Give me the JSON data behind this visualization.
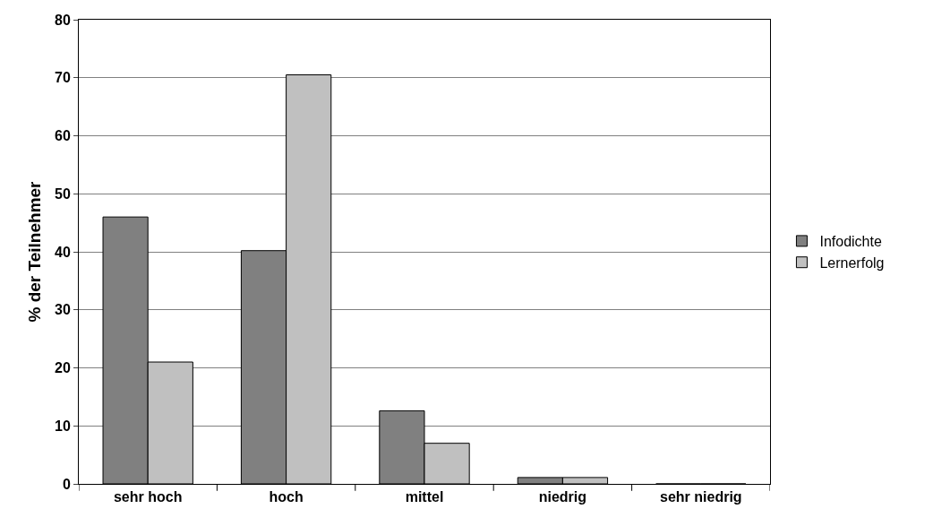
{
  "chart_data": {
    "type": "bar",
    "ylabel": "% der Teilnehmer",
    "categories": [
      "sehr hoch",
      "hoch",
      "mittel",
      "niedrig",
      "sehr niedrig"
    ],
    "series": [
      {
        "name": "Infodichte",
        "color": "#808080",
        "values": [
          46,
          40.2,
          12.6,
          1.1,
          0
        ]
      },
      {
        "name": "Lernerfolg",
        "color": "#c0c0c0",
        "values": [
          21,
          70.5,
          7,
          1.1,
          0
        ]
      }
    ],
    "ylim": [
      0,
      80
    ],
    "yticks": [
      0,
      10,
      20,
      30,
      40,
      50,
      60,
      70,
      80
    ],
    "grid": "y",
    "legend": "right"
  }
}
